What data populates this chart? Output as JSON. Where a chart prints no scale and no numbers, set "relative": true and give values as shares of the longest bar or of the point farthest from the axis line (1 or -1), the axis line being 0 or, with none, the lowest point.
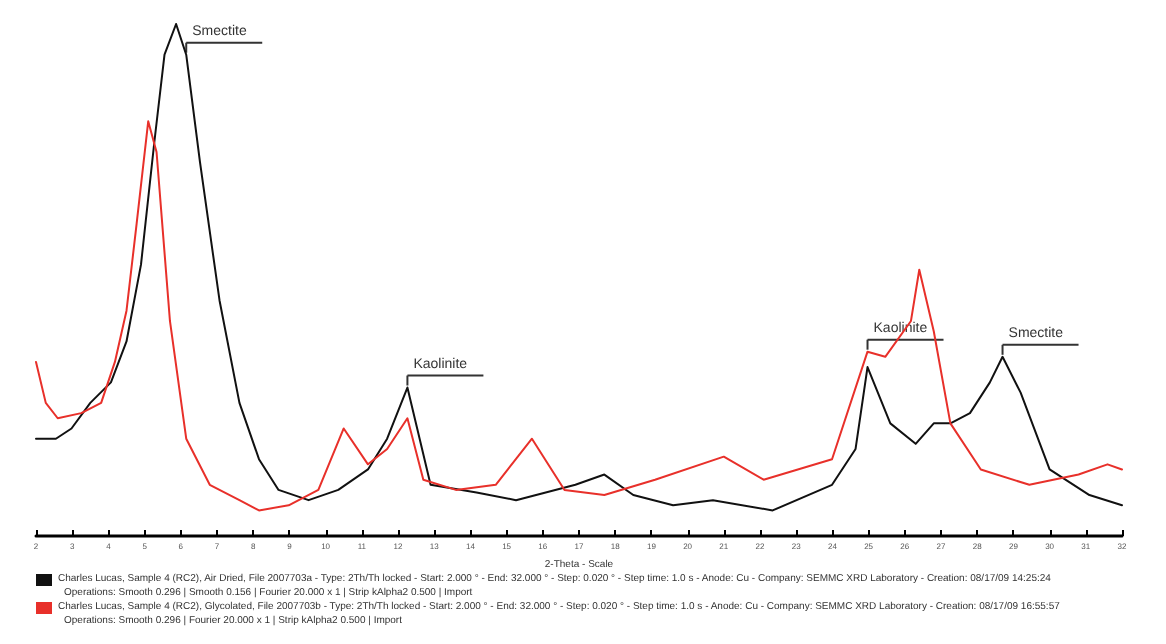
{
  "chart_data": {
    "type": "line",
    "xlabel": "2-Theta - Scale",
    "relative": true,
    "xlim": [
      2,
      32
    ],
    "xticks": [
      2,
      3,
      4,
      5,
      6,
      7,
      8,
      9,
      10,
      11,
      12,
      13,
      14,
      15,
      16,
      17,
      18,
      19,
      20,
      21,
      22,
      23,
      24,
      25,
      26,
      27,
      28,
      29,
      30,
      31,
      32
    ],
    "legend": "bottom",
    "grid": false,
    "marker": "none",
    "line_style": "solid",
    "series": [
      {
        "name": "Charles Lucas, Sample 4 (RC2), Air Dried, File 2007703a - Type: 2Th/Th locked - Start: 2.000 ° - End: 32.000 ° - Step: 0.020 ° - Step time: 1.0 s - Anode: Cu - Company: SEMMC XRD Laboratory - Creation: 08/17/09 14:25:24",
        "color": "#111111",
        "x": [
          2,
          2.55,
          2.98,
          3.5,
          4.07,
          4.5,
          4.9,
          5.27,
          5.55,
          5.87,
          6.15,
          6.53,
          7.07,
          7.62,
          8.16,
          8.7,
          9.53,
          10.35,
          11.17,
          11.7,
          12.26,
          12.53,
          12.9,
          14.17,
          15.26,
          16.9,
          17.7,
          18.5,
          19.6,
          20.7,
          22.35,
          23.99,
          24.64,
          24.97,
          25.6,
          26.3,
          26.8,
          27.26,
          27.8,
          28.35,
          28.7,
          29.2,
          30,
          31.1,
          32
        ],
        "values": [
          0.19,
          0.19,
          0.21,
          0.26,
          0.3,
          0.38,
          0.53,
          0.77,
          0.94,
          1,
          0.94,
          0.73,
          0.46,
          0.26,
          0.15,
          0.09,
          0.07,
          0.09,
          0.13,
          0.19,
          0.29,
          0.21,
          0.1,
          0.085,
          0.07,
          0.1,
          0.12,
          0.08,
          0.06,
          0.07,
          0.05,
          0.1,
          0.17,
          0.33,
          0.22,
          0.18,
          0.22,
          0.22,
          0.24,
          0.3,
          0.35,
          0.28,
          0.13,
          0.08,
          0.06
        ]
      },
      {
        "name": "Charles Lucas, Sample 4 (RC2), Glycolated, File 2007703b - Type: 2Th/Th locked - Start: 2.000 ° - End: 32.000 ° - Step: 0.020 ° - Step time: 1.0 s - Anode: Cu - Company: SEMMC XRD Laboratory - Creation: 08/17/09 16:55:57",
        "color": "#e8302a",
        "x": [
          2,
          2.27,
          2.6,
          3.25,
          3.8,
          4.18,
          4.5,
          4.78,
          5.1,
          5.33,
          5.7,
          6.15,
          6.8,
          7.62,
          8.16,
          8.98,
          9.8,
          10.5,
          11.17,
          11.7,
          12.26,
          12.7,
          13.6,
          14.7,
          15.7,
          16.6,
          17.7,
          19.1,
          21,
          22.1,
          23.99,
          24.97,
          25.46,
          26.17,
          26.4,
          26.8,
          27.26,
          28.1,
          29.44,
          30.8,
          31.6,
          32
        ],
        "values": [
          0.34,
          0.26,
          0.23,
          0.24,
          0.26,
          0.34,
          0.44,
          0.61,
          0.81,
          0.75,
          0.42,
          0.19,
          0.1,
          0.07,
          0.05,
          0.06,
          0.09,
          0.21,
          0.14,
          0.17,
          0.23,
          0.11,
          0.09,
          0.1,
          0.19,
          0.09,
          0.08,
          0.11,
          0.155,
          0.11,
          0.15,
          0.36,
          0.35,
          0.42,
          0.52,
          0.4,
          0.22,
          0.13,
          0.1,
          0.12,
          0.14,
          0.13
        ]
      }
    ],
    "annotations": [
      {
        "text": "Smectite",
        "x": 6.15,
        "y": 0.94
      },
      {
        "text": "Kaolinite",
        "x": 12.26,
        "y": 0.29
      },
      {
        "text": "Kaolinite",
        "x": 24.97,
        "y": 0.36
      },
      {
        "text": "Smectite",
        "x": 28.7,
        "y": 0.35
      },
      "Operations: Smooth 0.296 | Smooth 0.156 | Fourier 20.000 x 1 | Strip kAlpha2 0.500 | Import",
      "Operations: Smooth 0.296 | Fourier 20.000 x 1 | Strip kAlpha2 0.500 | Import"
    ]
  }
}
